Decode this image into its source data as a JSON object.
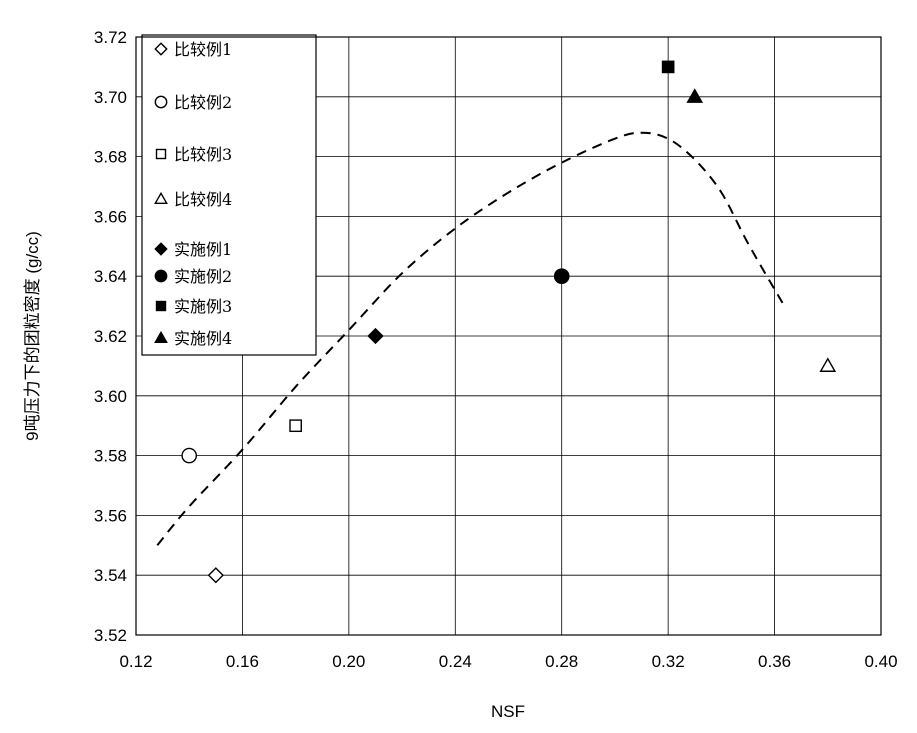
{
  "chart_data": {
    "type": "scatter",
    "title": "",
    "xlabel": "NSF",
    "ylabel": "9吨压力下的团粒密度 (g/cc)",
    "xlim": [
      0.12,
      0.4
    ],
    "ylim": [
      3.52,
      3.72
    ],
    "x_ticks": [
      "0.12",
      "0.16",
      "0.20",
      "0.24",
      "0.28",
      "0.32",
      "0.36",
      "0.40"
    ],
    "y_ticks": [
      "3.52",
      "3.54",
      "3.56",
      "3.58",
      "3.60",
      "3.62",
      "3.64",
      "3.66",
      "3.68",
      "3.70",
      "3.72"
    ],
    "grid": true,
    "legend_position": "top-left",
    "series": [
      {
        "name": "比较例1",
        "marker": "diamond",
        "filled": false,
        "points": [
          {
            "x": 0.15,
            "y": 3.54
          }
        ]
      },
      {
        "name": "比较例2",
        "marker": "circle",
        "filled": false,
        "points": [
          {
            "x": 0.14,
            "y": 3.58
          }
        ]
      },
      {
        "name": "比较例3",
        "marker": "square",
        "filled": false,
        "points": [
          {
            "x": 0.18,
            "y": 3.59
          }
        ]
      },
      {
        "name": "比较例4",
        "marker": "triangle",
        "filled": false,
        "points": [
          {
            "x": 0.38,
            "y": 3.61
          }
        ]
      },
      {
        "name": "实施例1",
        "marker": "diamond",
        "filled": true,
        "points": [
          {
            "x": 0.21,
            "y": 3.62
          }
        ]
      },
      {
        "name": "实施例2",
        "marker": "circle",
        "filled": true,
        "points": [
          {
            "x": 0.28,
            "y": 3.64
          }
        ]
      },
      {
        "name": "实施例3",
        "marker": "square",
        "filled": true,
        "points": [
          {
            "x": 0.32,
            "y": 3.71
          }
        ]
      },
      {
        "name": "实施例4",
        "marker": "triangle",
        "filled": true,
        "points": [
          {
            "x": 0.33,
            "y": 3.7
          }
        ]
      }
    ],
    "trend_curve": {
      "style": "dashed",
      "points": [
        {
          "x": 0.128,
          "y": 3.55
        },
        {
          "x": 0.14,
          "y": 3.563
        },
        {
          "x": 0.16,
          "y": 3.582
        },
        {
          "x": 0.18,
          "y": 3.603
        },
        {
          "x": 0.2,
          "y": 3.622
        },
        {
          "x": 0.22,
          "y": 3.641
        },
        {
          "x": 0.24,
          "y": 3.656
        },
        {
          "x": 0.26,
          "y": 3.668
        },
        {
          "x": 0.28,
          "y": 3.678
        },
        {
          "x": 0.3,
          "y": 3.686
        },
        {
          "x": 0.31,
          "y": 3.688
        },
        {
          "x": 0.32,
          "y": 3.686
        },
        {
          "x": 0.33,
          "y": 3.679
        },
        {
          "x": 0.34,
          "y": 3.668
        },
        {
          "x": 0.35,
          "y": 3.651
        },
        {
          "x": 0.363,
          "y": 3.631
        }
      ]
    }
  }
}
